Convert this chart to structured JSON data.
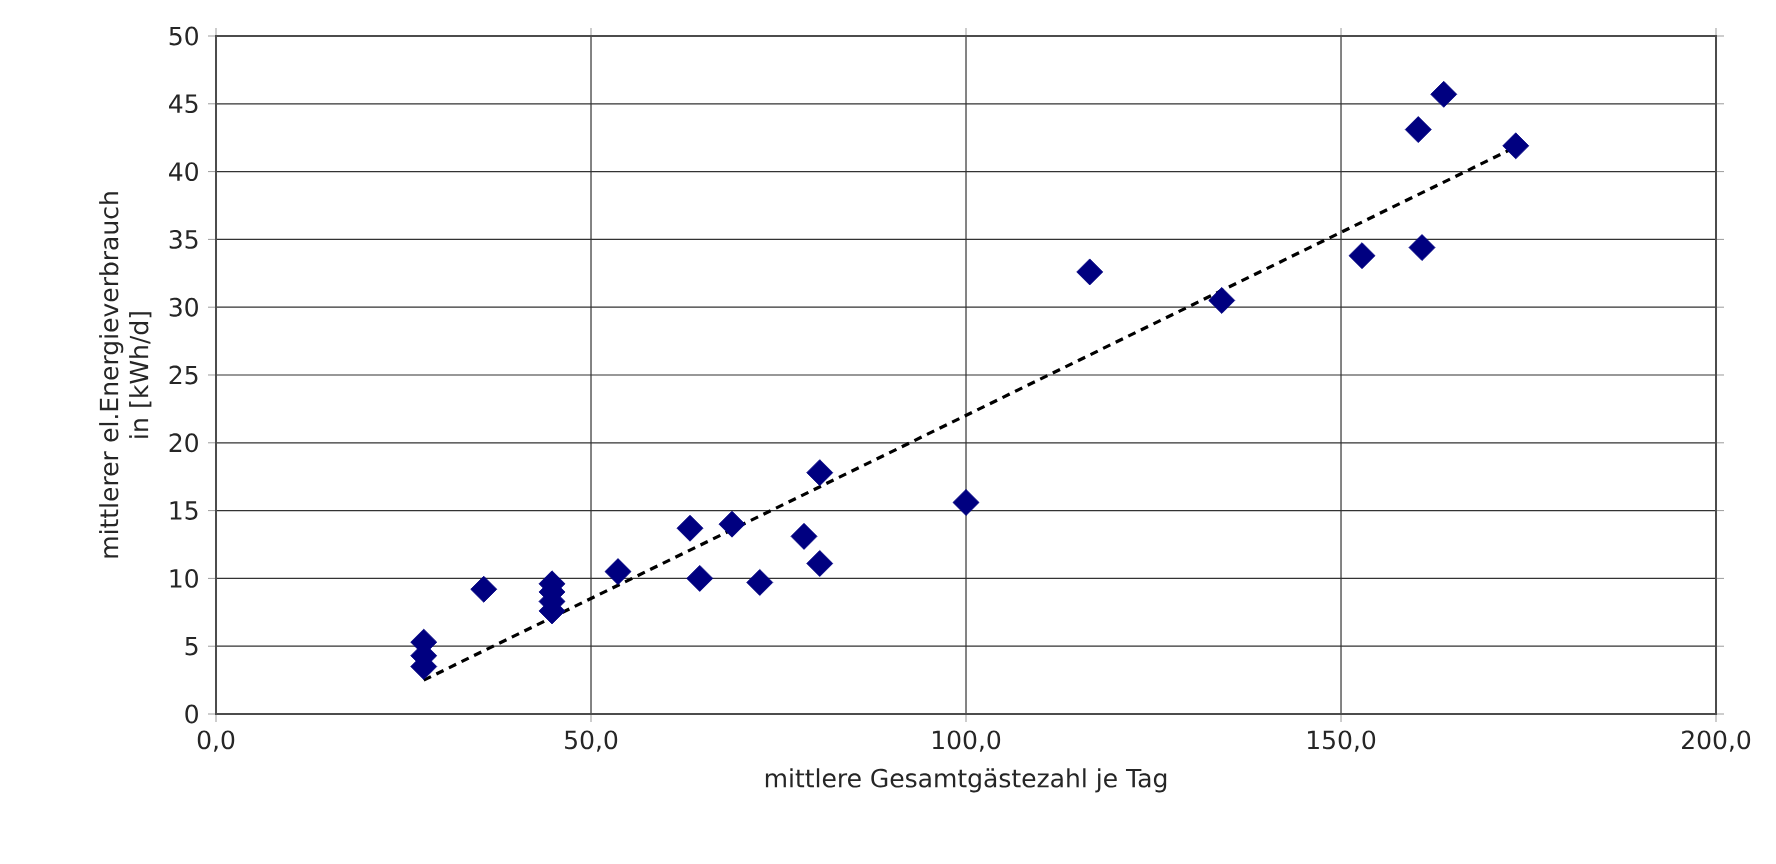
{
  "chart_data": {
    "type": "scatter",
    "xlabel": "mittlere Gesamtgästezahl je Tag",
    "ylabel": "mittlerer el.Energieverbrauch in [kWh/d]",
    "series": [
      {
        "color": "#000080",
        "marker": "diamond",
        "x": [
          27.7,
          27.7,
          27.7,
          35.7,
          44.8,
          44.8,
          44.8,
          44.8,
          53.6,
          63.2,
          64.5,
          68.8,
          72.5,
          78.4,
          80.5,
          80.5,
          100,
          116.5,
          134.1,
          152.8,
          160.8,
          160.3,
          163.7,
          173.3
        ],
        "values": [
          5.3,
          4.3,
          3.5,
          9.2,
          9.6,
          9.0,
          8.3,
          7.6,
          10.5,
          13.7,
          10.0,
          14.0,
          9.7,
          13.1,
          11.1,
          17.8,
          15.6,
          32.6,
          30.5,
          33.8,
          34.4,
          43.1,
          45.7,
          41.9
        ]
      },
      {
        "type": "line",
        "color": "#000000",
        "line_style": "dashed",
        "marker": "none",
        "x": [
          27.7,
          172.5
        ],
        "values": [
          2.5,
          41.6
        ]
      }
    ],
    "xlim": [
      0,
      200
    ],
    "ylim": [
      0,
      50
    ],
    "xticks": [
      {
        "value": 0,
        "label": "0,0"
      },
      {
        "value": 50,
        "label": "50,0"
      },
      {
        "value": 100,
        "label": "100,0"
      },
      {
        "value": 150,
        "label": "150,0"
      },
      {
        "value": 200,
        "label": "200,0"
      }
    ],
    "yticks": [
      0,
      5,
      10,
      15,
      20,
      25,
      30,
      35,
      40,
      45,
      50
    ],
    "grid": true
  }
}
